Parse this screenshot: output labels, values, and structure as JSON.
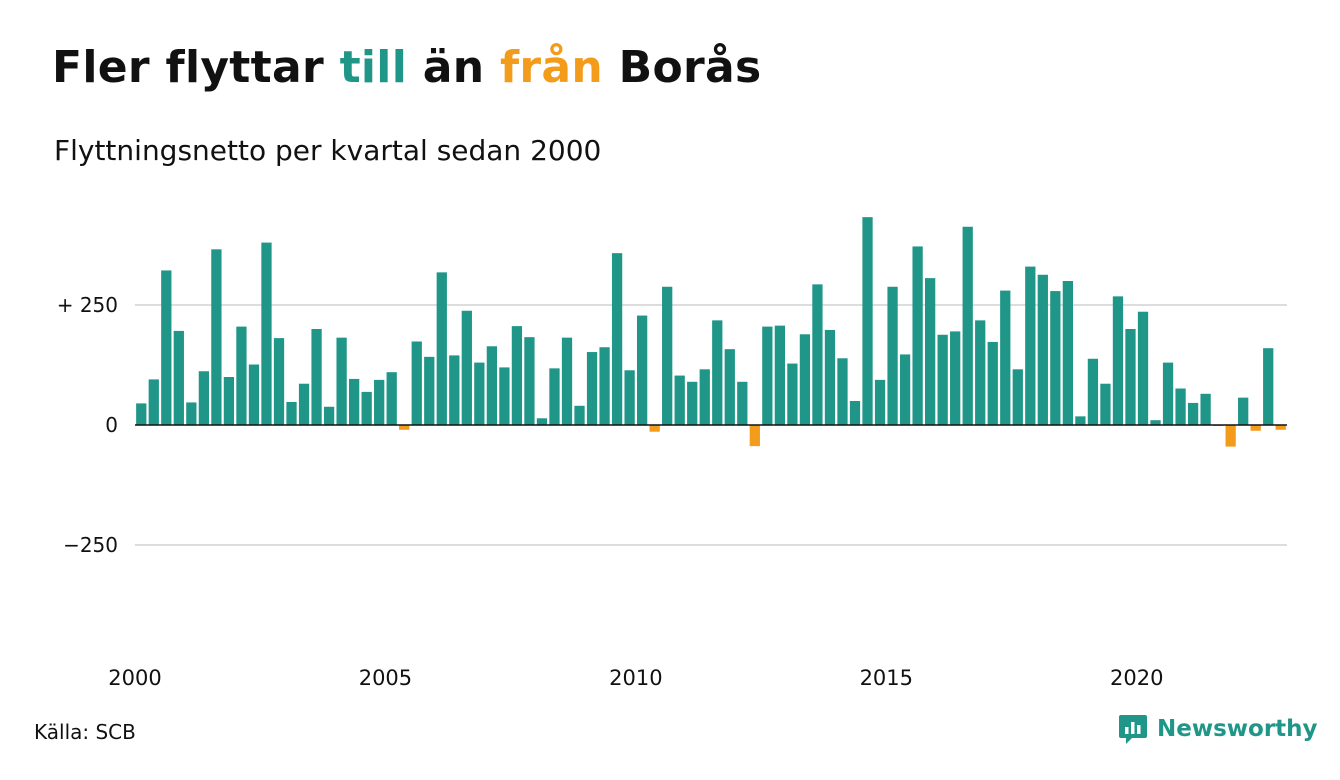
{
  "title_parts": {
    "p1": "Fler flyttar ",
    "p2": "till",
    "p3": " än ",
    "p4": "från",
    "p5": " Borås"
  },
  "subtitle": "Flyttningsnetto per kvartal sedan 2000",
  "source": "Källa: SCB",
  "brand": "Newsworthy",
  "colors": {
    "positive": "#1f9688",
    "negative": "#f39c1c",
    "title_till": "#1f9688",
    "title_fran": "#f39c1c",
    "grid": "#dddddd",
    "axis": "#111111"
  },
  "chart_data": {
    "type": "bar",
    "x_start": "2000 Q1",
    "period": "quarter",
    "xticks": [
      "2000",
      "2005",
      "2010",
      "2015",
      "2020"
    ],
    "yticks": [
      250,
      0,
      -250
    ],
    "ytick_labels": [
      "+ 250",
      "0",
      "−250"
    ],
    "ylim": [
      -460,
      460
    ],
    "grid": true,
    "values": [
      45,
      95,
      322,
      196,
      47,
      112,
      366,
      100,
      205,
      126,
      380,
      181,
      48,
      86,
      200,
      38,
      182,
      96,
      69,
      94,
      110,
      -10,
      174,
      142,
      318,
      145,
      238,
      130,
      164,
      120,
      206,
      183,
      14,
      118,
      182,
      40,
      152,
      162,
      358,
      114,
      228,
      -14,
      288,
      103,
      90,
      116,
      218,
      158,
      90,
      -44,
      205,
      207,
      128,
      189,
      293,
      198,
      139,
      50,
      433,
      94,
      288,
      147,
      372,
      306,
      188,
      195,
      413,
      218,
      173,
      280,
      116,
      330,
      313,
      279,
      300,
      18,
      138,
      86,
      268,
      200,
      236,
      10,
      130,
      76,
      46,
      65,
      -2,
      -45,
      57,
      -12,
      160,
      -10
    ]
  }
}
